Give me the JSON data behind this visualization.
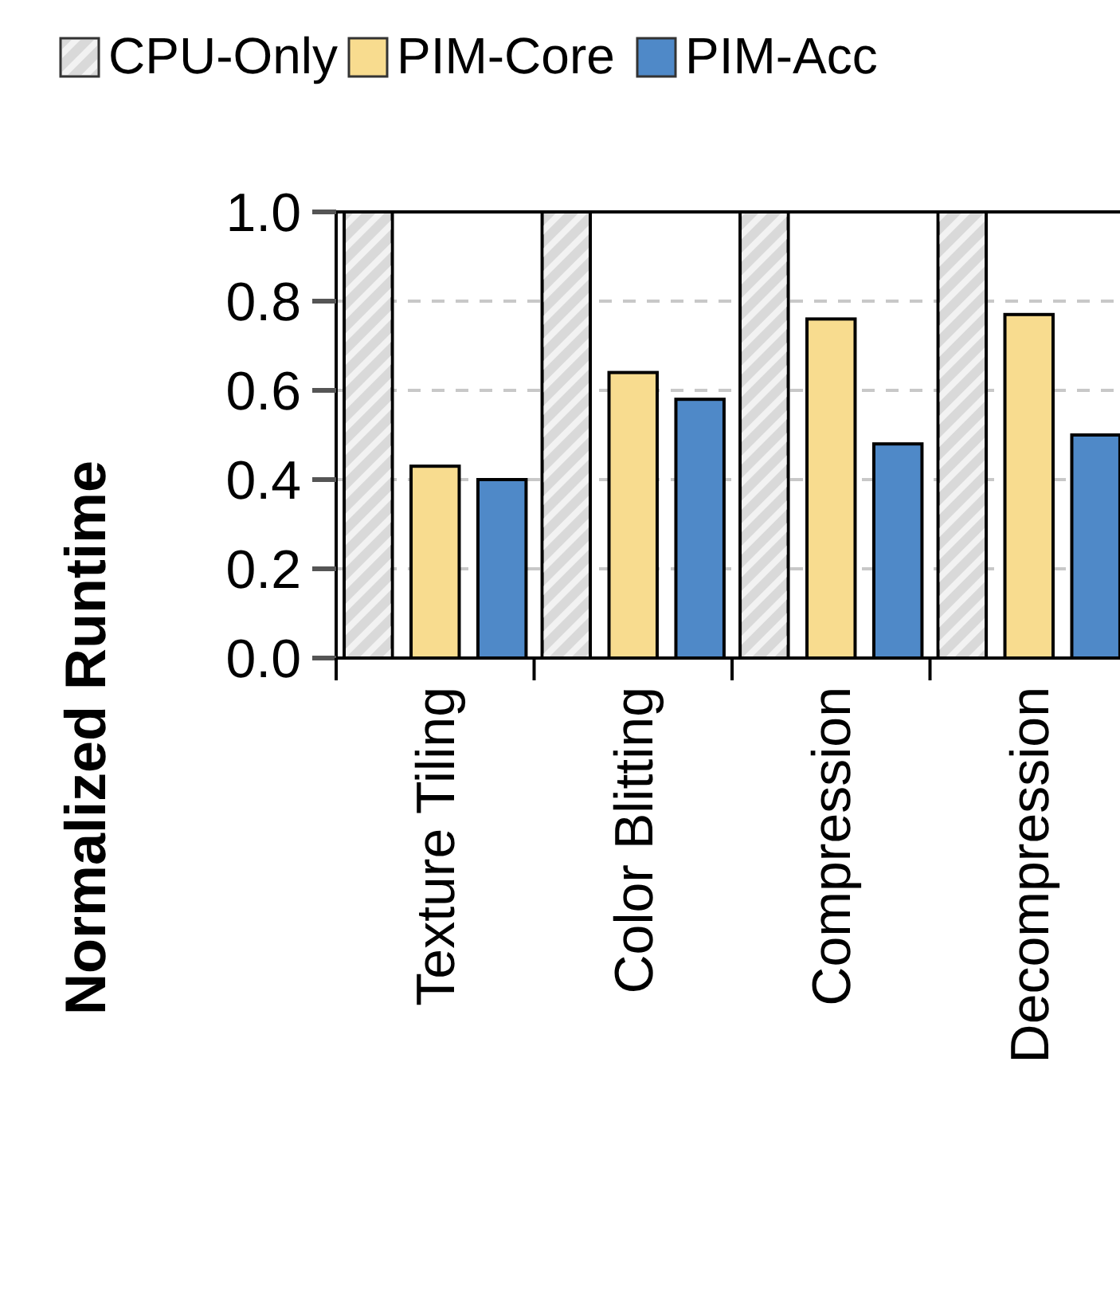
{
  "chart_data": {
    "type": "bar",
    "ylabel": "Normalized Runtime",
    "categories": [
      "Texture Tiling",
      "Color Blitting",
      "Compression",
      "Decompression"
    ],
    "series": [
      {
        "name": "CPU-Only",
        "color": "#d9d9d9",
        "values": [
          1.0,
          1.0,
          1.0,
          1.0
        ]
      },
      {
        "name": "PIM-Core",
        "color": "#f8dc8f",
        "values": [
          0.43,
          0.64,
          0.76,
          0.77
        ]
      },
      {
        "name": "PIM-Acc",
        "color": "#4f89c8",
        "values": [
          0.4,
          0.58,
          0.48,
          0.5
        ]
      }
    ],
    "ylim": [
      0,
      1.0
    ],
    "yticks": [
      {
        "value": 0,
        "label": "0.0"
      },
      0.2,
      0.4,
      0.6,
      0.8,
      {
        "value": 1,
        "label": "1.0"
      }
    ],
    "grid": "y",
    "legend": "top"
  }
}
